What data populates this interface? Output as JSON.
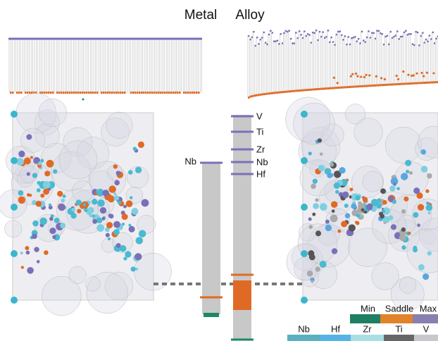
{
  "titles": [
    "Metal",
    "Alloy"
  ],
  "metal_levels": [
    "Nb"
  ],
  "alloy_levels": [
    "V",
    "Ti",
    "Zr",
    "Nb",
    "Hf"
  ],
  "legend_energy": [
    "Min",
    "Saddle",
    "Max"
  ],
  "legend_elements": [
    "Nb",
    "Hf",
    "Zr",
    "Ti",
    "V"
  ]
}
